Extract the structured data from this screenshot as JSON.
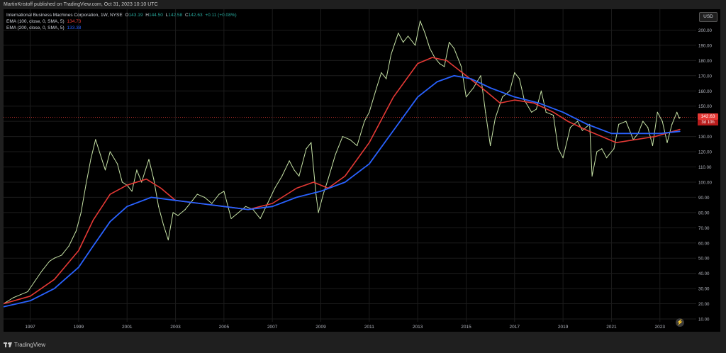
{
  "header": {
    "published": "MartinKristoff published on TradingView.com, Oct 31, 2023 10:10 UTC"
  },
  "legend": {
    "symbol": "International Business Machines Corporation, 1W, NYSE",
    "ohlc": {
      "o_label": "O",
      "o": "143.19",
      "h_label": "H",
      "h": "144.50",
      "l_label": "L",
      "l": "142.58",
      "c_label": "C",
      "c": "142.63",
      "change": "+0.11 (+0.08%)"
    },
    "ema100": {
      "label": "EMA (100, close, 0, SMA, 5)",
      "value": "134.73"
    },
    "ema200": {
      "label": "EMA (200, close, 0, SMA, 5)",
      "value": "133.38"
    }
  },
  "currency_button": "USD",
  "last_price": {
    "price": "142.63",
    "countdown": "3d 10h"
  },
  "footer": {
    "brand": "TradingView"
  },
  "colors": {
    "background": "#000000",
    "price_series": "#c5e1a5",
    "ema100": "#e53935",
    "ema200": "#2962ff",
    "last_price_line": "#e53935",
    "text": "#d1d4dc"
  },
  "chart_data": {
    "type": "line",
    "x_ticks": [
      "1997",
      "1999",
      "2001",
      "2003",
      "2005",
      "2007",
      "2009",
      "2011",
      "2013",
      "2015",
      "2017",
      "2019",
      "2021",
      "2023"
    ],
    "y_ticks": [
      "10.00",
      "20.00",
      "30.00",
      "40.00",
      "50.00",
      "60.00",
      "70.00",
      "80.00",
      "90.00",
      "100.00",
      "110.00",
      "120.00",
      "130.00",
      "140.00",
      "150.00",
      "160.00",
      "170.00",
      "180.00",
      "190.00",
      "200.00"
    ],
    "ylim": [
      10,
      210
    ],
    "xlim": [
      1995.9,
      2024.5
    ],
    "series": [
      {
        "name": "IBM",
        "role": "price",
        "points": [
          [
            1995.9,
            20
          ],
          [
            1996.3,
            24
          ],
          [
            1996.6,
            26
          ],
          [
            1996.9,
            28
          ],
          [
            1997.2,
            35
          ],
          [
            1997.5,
            42
          ],
          [
            1997.8,
            48
          ],
          [
            1998.0,
            50
          ],
          [
            1998.3,
            52
          ],
          [
            1998.6,
            58
          ],
          [
            1998.9,
            68
          ],
          [
            1999.1,
            80
          ],
          [
            1999.3,
            98
          ],
          [
            1999.5,
            115
          ],
          [
            1999.7,
            128
          ],
          [
            1999.9,
            118
          ],
          [
            2000.1,
            108
          ],
          [
            2000.3,
            120
          ],
          [
            2000.6,
            112
          ],
          [
            2000.8,
            100
          ],
          [
            2001.0,
            98
          ],
          [
            2001.2,
            94
          ],
          [
            2001.4,
            108
          ],
          [
            2001.6,
            100
          ],
          [
            2001.9,
            115
          ],
          [
            2002.1,
            102
          ],
          [
            2002.3,
            84
          ],
          [
            2002.5,
            72
          ],
          [
            2002.7,
            62
          ],
          [
            2002.9,
            80
          ],
          [
            2003.1,
            78
          ],
          [
            2003.4,
            82
          ],
          [
            2003.7,
            88
          ],
          [
            2003.9,
            92
          ],
          [
            2004.2,
            90
          ],
          [
            2004.5,
            86
          ],
          [
            2004.8,
            92
          ],
          [
            2005.0,
            94
          ],
          [
            2005.3,
            76
          ],
          [
            2005.6,
            80
          ],
          [
            2005.9,
            84
          ],
          [
            2006.2,
            82
          ],
          [
            2006.5,
            76
          ],
          [
            2006.8,
            86
          ],
          [
            2007.1,
            96
          ],
          [
            2007.4,
            104
          ],
          [
            2007.7,
            114
          ],
          [
            2007.9,
            108
          ],
          [
            2008.1,
            104
          ],
          [
            2008.4,
            122
          ],
          [
            2008.6,
            126
          ],
          [
            2008.8,
            92
          ],
          [
            2008.9,
            80
          ],
          [
            2009.1,
            92
          ],
          [
            2009.3,
            102
          ],
          [
            2009.6,
            118
          ],
          [
            2009.9,
            130
          ],
          [
            2010.2,
            128
          ],
          [
            2010.5,
            124
          ],
          [
            2010.8,
            140
          ],
          [
            2011.0,
            146
          ],
          [
            2011.3,
            162
          ],
          [
            2011.5,
            172
          ],
          [
            2011.7,
            168
          ],
          [
            2011.9,
            184
          ],
          [
            2012.2,
            198
          ],
          [
            2012.4,
            192
          ],
          [
            2012.6,
            196
          ],
          [
            2012.9,
            190
          ],
          [
            2013.1,
            206
          ],
          [
            2013.3,
            198
          ],
          [
            2013.5,
            188
          ],
          [
            2013.7,
            182
          ],
          [
            2013.9,
            178
          ],
          [
            2014.1,
            176
          ],
          [
            2014.3,
            192
          ],
          [
            2014.5,
            188
          ],
          [
            2014.8,
            176
          ],
          [
            2015.0,
            156
          ],
          [
            2015.3,
            162
          ],
          [
            2015.6,
            170
          ],
          [
            2015.8,
            146
          ],
          [
            2016.0,
            124
          ],
          [
            2016.2,
            142
          ],
          [
            2016.5,
            156
          ],
          [
            2016.8,
            160
          ],
          [
            2017.0,
            172
          ],
          [
            2017.2,
            168
          ],
          [
            2017.4,
            154
          ],
          [
            2017.7,
            146
          ],
          [
            2017.9,
            148
          ],
          [
            2018.1,
            160
          ],
          [
            2018.3,
            146
          ],
          [
            2018.6,
            144
          ],
          [
            2018.8,
            122
          ],
          [
            2019.0,
            116
          ],
          [
            2019.3,
            136
          ],
          [
            2019.6,
            140
          ],
          [
            2019.8,
            134
          ],
          [
            2020.1,
            138
          ],
          [
            2020.2,
            104
          ],
          [
            2020.4,
            120
          ],
          [
            2020.6,
            122
          ],
          [
            2020.8,
            116
          ],
          [
            2020.9,
            118
          ],
          [
            2021.1,
            122
          ],
          [
            2021.3,
            138
          ],
          [
            2021.6,
            140
          ],
          [
            2021.9,
            128
          ],
          [
            2022.1,
            132
          ],
          [
            2022.3,
            140
          ],
          [
            2022.5,
            136
          ],
          [
            2022.7,
            124
          ],
          [
            2022.9,
            146
          ],
          [
            2023.1,
            140
          ],
          [
            2023.3,
            126
          ],
          [
            2023.5,
            138
          ],
          [
            2023.7,
            146
          ],
          [
            2023.8,
            142
          ],
          [
            2023.83,
            142.63
          ]
        ]
      },
      {
        "name": "EMA (100, close, 0, SMA, 5)",
        "role": "ema100",
        "points": [
          [
            1995.9,
            20
          ],
          [
            1997.0,
            25
          ],
          [
            1998.0,
            36
          ],
          [
            1999.0,
            55
          ],
          [
            1999.6,
            75
          ],
          [
            2000.3,
            92
          ],
          [
            2001.0,
            98
          ],
          [
            2001.8,
            102
          ],
          [
            2002.4,
            96
          ],
          [
            2003.0,
            88
          ],
          [
            2004.0,
            86
          ],
          [
            2005.0,
            84
          ],
          [
            2006.0,
            82
          ],
          [
            2007.0,
            86
          ],
          [
            2008.0,
            96
          ],
          [
            2008.7,
            100
          ],
          [
            2009.3,
            96
          ],
          [
            2010.0,
            104
          ],
          [
            2011.0,
            126
          ],
          [
            2012.0,
            156
          ],
          [
            2013.0,
            178
          ],
          [
            2013.6,
            182
          ],
          [
            2014.2,
            180
          ],
          [
            2015.0,
            170
          ],
          [
            2015.8,
            160
          ],
          [
            2016.4,
            152
          ],
          [
            2017.0,
            154
          ],
          [
            2017.8,
            152
          ],
          [
            2018.6,
            146
          ],
          [
            2019.2,
            140
          ],
          [
            2020.0,
            134
          ],
          [
            2020.6,
            130
          ],
          [
            2021.2,
            126
          ],
          [
            2022.0,
            128
          ],
          [
            2022.8,
            130
          ],
          [
            2023.83,
            134.73
          ]
        ]
      },
      {
        "name": "EMA (200, close, 0, SMA, 5)",
        "role": "ema200",
        "points": [
          [
            1995.9,
            18
          ],
          [
            1997.0,
            22
          ],
          [
            1998.0,
            30
          ],
          [
            1999.0,
            44
          ],
          [
            1999.6,
            58
          ],
          [
            2000.3,
            74
          ],
          [
            2001.0,
            84
          ],
          [
            2002.0,
            90
          ],
          [
            2003.0,
            88
          ],
          [
            2004.0,
            86
          ],
          [
            2005.0,
            84
          ],
          [
            2006.0,
            82
          ],
          [
            2007.0,
            84
          ],
          [
            2008.0,
            90
          ],
          [
            2009.0,
            94
          ],
          [
            2010.0,
            100
          ],
          [
            2011.0,
            112
          ],
          [
            2012.0,
            134
          ],
          [
            2013.0,
            156
          ],
          [
            2013.8,
            166
          ],
          [
            2014.5,
            170
          ],
          [
            2015.2,
            168
          ],
          [
            2016.0,
            162
          ],
          [
            2017.0,
            156
          ],
          [
            2018.0,
            152
          ],
          [
            2019.0,
            146
          ],
          [
            2020.0,
            138
          ],
          [
            2021.0,
            132
          ],
          [
            2022.0,
            132
          ],
          [
            2023.0,
            132
          ],
          [
            2023.83,
            133.38
          ]
        ]
      }
    ]
  }
}
